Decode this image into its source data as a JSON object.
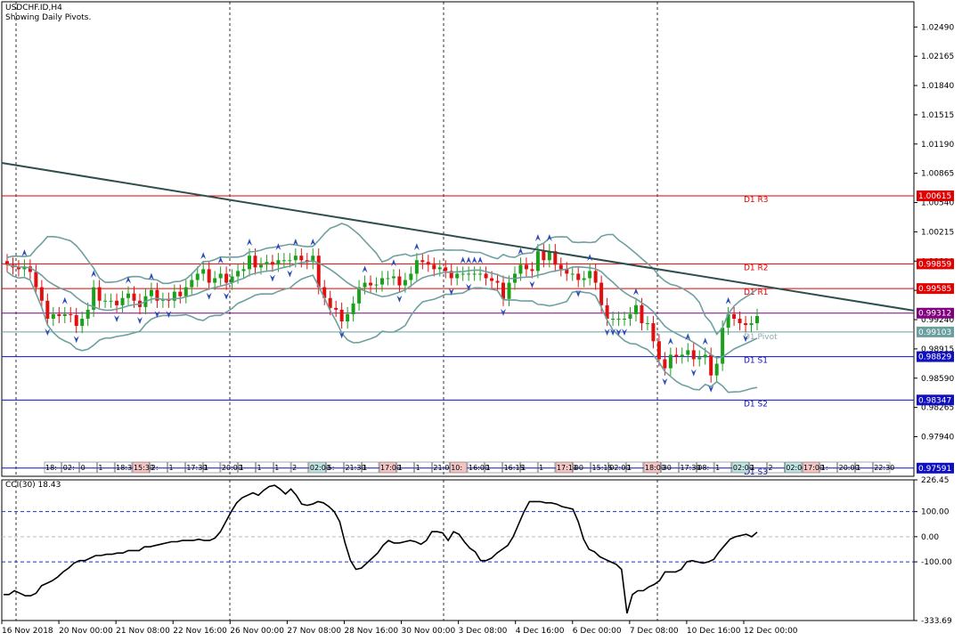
{
  "header": {
    "symbol": "USDCHF.ID,H4",
    "subtitle": "Showing Daily Pivots."
  },
  "chart_data": {
    "type": "candlestick",
    "price_axis": {
      "ticks": [
        "1.02490",
        "1.02165",
        "1.01840",
        "1.01515",
        "1.01190",
        "1.00865",
        "1.00540",
        "1.00215",
        "0.99890",
        "0.99565",
        "0.99240",
        "0.98915",
        "0.98590",
        "0.98265",
        "0.97940"
      ],
      "ylim": [
        0.975,
        1.0277
      ]
    },
    "pivots": [
      {
        "name": "D1 R3",
        "value": "1.00615",
        "color": "#e00000"
      },
      {
        "name": "D1 R2",
        "value": "0.99859",
        "color": "#e00000"
      },
      {
        "name": "D1 R1",
        "value": "0.99585",
        "color": "#e00000"
      },
      {
        "name": "D1 Pivot",
        "value": "0.99103",
        "color": "#6a9fa0"
      },
      {
        "name": "D1 S1",
        "value": "0.98829",
        "color": "#1010c0"
      },
      {
        "name": "D1 S2",
        "value": "0.98347",
        "color": "#1010c0"
      },
      {
        "name": "D1 S3",
        "value": "0.97591",
        "color": "#1010c0"
      }
    ],
    "current_price": {
      "value": "0.99312",
      "color": "#800080"
    },
    "trendline": {
      "start": 1.0098,
      "end": 0.9934
    },
    "candles_close": [
      0.9985,
      0.9982,
      0.998,
      0.9983,
      0.9977,
      0.996,
      0.9945,
      0.9925,
      0.993,
      0.9928,
      0.993,
      0.9929,
      0.9917,
      0.9925,
      0.9935,
      0.996,
      0.9945,
      0.9945,
      0.9945,
      0.994,
      0.9948,
      0.9953,
      0.9945,
      0.9938,
      0.995,
      0.9957,
      0.9945,
      0.9946,
      0.9945,
      0.9955,
      0.995,
      0.996,
      0.9968,
      0.9975,
      0.998,
      0.9965,
      0.997,
      0.9975,
      0.9965,
      0.9972,
      0.9978,
      0.998,
      0.9995,
      0.9982,
      0.9985,
      0.9988,
      0.9985,
      0.999,
      0.999,
      0.999,
      0.9995,
      0.999,
      0.9988,
      0.9995,
      0.996,
      0.9948,
      0.9937,
      0.9935,
      0.9922,
      0.993,
      0.9942,
      0.996,
      0.9965,
      0.9962,
      0.9963,
      0.997,
      0.997,
      0.9972,
      0.9962,
      0.9968,
      0.9975,
      0.999,
      0.9988,
      0.9985,
      0.998,
      0.9982,
      0.9978,
      0.997,
      0.9975,
      0.9975,
      0.9975,
      0.9975,
      0.9975,
      0.997,
      0.9967,
      0.9965,
      0.9947,
      0.9965,
      0.9975,
      0.9985,
      0.998,
      0.9978,
      1.0,
      0.999,
      1.0,
      0.9985,
      0.998,
      0.9975,
      0.9975,
      0.9968,
      0.997,
      0.9978,
      0.9965,
      0.994,
      0.9925,
      0.9925,
      0.9925,
      0.9925,
      0.993,
      0.994,
      0.992,
      0.992,
      0.99,
      0.988,
      0.987,
      0.9885,
      0.9883,
      0.9885,
      0.989,
      0.988,
      0.9882,
      0.9885,
      0.9862,
      0.9875,
      0.9915,
      0.993,
      0.9925,
      0.992,
      0.9918,
      0.992,
      0.9928
    ],
    "time_axis": {
      "labels": [
        "16 Nov 2018",
        "20 Nov 00:00",
        "21 Nov 08:00",
        "22 Nov 16:00",
        "26 Nov 00:00",
        "27 Nov 08:00",
        "28 Nov 16:00",
        "30 Nov 00:00",
        "3 Dec 08:00",
        "4 Dec 16:00",
        "6 Dec 00:00",
        "7 Dec 08:00",
        "10 Dec 16:00",
        "12 Dec 00:00"
      ]
    },
    "session_strip": [
      "18:",
      "02:",
      "0",
      "1",
      "18:30",
      "15:30",
      "2:",
      "1",
      "17:30",
      "1",
      "20:00",
      "1",
      "1",
      "1",
      "2",
      "02:00",
      "5:",
      "21:30",
      "1",
      "17:00",
      "1",
      "1",
      "21:00",
      "10:",
      "16:00",
      "1",
      "16:15",
      "1",
      "1",
      "17:10",
      "00",
      "15:15",
      "02:00",
      "1",
      "18:00",
      "30",
      "17:30",
      "08:",
      "1",
      "02:00",
      "1",
      "2",
      "02:00",
      "17:00",
      "1:",
      "20:00",
      "1",
      "22:30"
    ],
    "cci": {
      "title": "CCI(30) 18.43",
      "ticks": [
        "226.45",
        "100.00",
        "0.00",
        "-100.00",
        "-333.69"
      ],
      "levels": [
        100,
        0,
        -100
      ],
      "ylim": [
        -333.69,
        226.45
      ],
      "values": [
        -230,
        -230,
        -215,
        -225,
        -235,
        -235,
        -225,
        -195,
        -185,
        -175,
        -160,
        -140,
        -125,
        -105,
        -95,
        -95,
        -85,
        -75,
        -75,
        -70,
        -70,
        -65,
        -65,
        -55,
        -55,
        -55,
        -40,
        -40,
        -35,
        -30,
        -25,
        -20,
        -20,
        -15,
        -15,
        -15,
        -10,
        -15,
        -15,
        -5,
        20,
        60,
        100,
        135,
        155,
        165,
        175,
        165,
        185,
        200,
        205,
        190,
        170,
        190,
        165,
        130,
        125,
        130,
        140,
        135,
        120,
        100,
        60,
        -25,
        -95,
        -130,
        -125,
        -105,
        -85,
        -65,
        -35,
        -15,
        -25,
        -25,
        -20,
        -15,
        -20,
        -30,
        -15,
        20,
        20,
        15,
        -15,
        20,
        10,
        -20,
        -45,
        -60,
        -95,
        -95,
        -85,
        -65,
        -50,
        -35,
        0,
        50,
        100,
        140,
        140,
        140,
        135,
        135,
        130,
        120,
        115,
        110,
        60,
        -10,
        -50,
        -60,
        -80,
        -90,
        -100,
        -110,
        -130,
        -305,
        -230,
        -215,
        -215,
        -200,
        -190,
        -175,
        -140,
        -140,
        -140,
        -130,
        -100,
        -95,
        -100,
        -105,
        -100,
        -90,
        -60,
        -35,
        -10,
        0,
        5,
        10,
        0,
        18
      ],
      "line_color": "#000000"
    },
    "grid": true,
    "xlabel": "",
    "ylabel": ""
  }
}
